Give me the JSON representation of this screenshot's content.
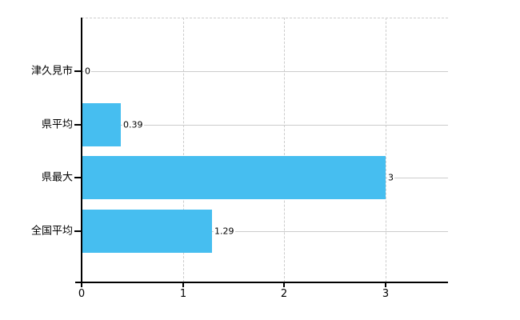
{
  "chart_data": {
    "type": "bar",
    "orientation": "horizontal",
    "title": "",
    "xlabel": "",
    "ylabel": "",
    "categories": [
      "津久見市",
      "県平均",
      "県最大",
      "全国平均"
    ],
    "values": [
      0,
      0.39,
      3,
      1.29
    ],
    "value_labels": [
      "0",
      "0.39",
      "3",
      "1.29"
    ],
    "x_ticks": [
      0,
      1,
      2,
      3
    ],
    "x_tick_labels": [
      "0",
      "1",
      "2",
      "3"
    ],
    "xlim": [
      0,
      3.62
    ],
    "grid": true,
    "legend": false,
    "colors": {
      "bar": "#46BEF0",
      "grid": "#cccccc",
      "axis": "#000000",
      "text": "#000000",
      "background": "#ffffff"
    }
  }
}
